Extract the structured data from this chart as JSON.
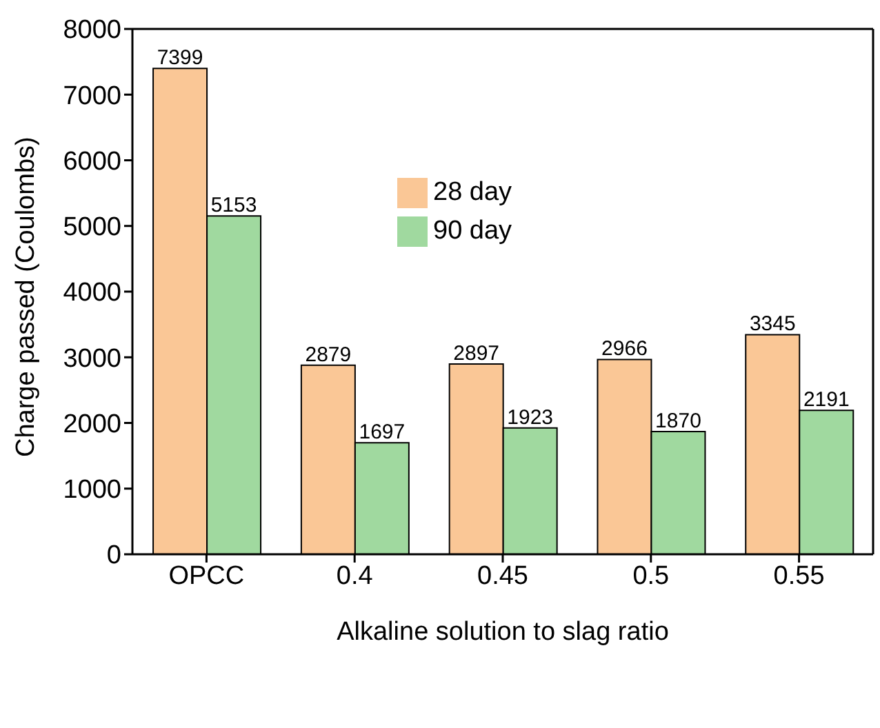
{
  "chart_data": {
    "type": "bar",
    "xlabel": "Alkaline solution to slag ratio",
    "ylabel": "Charge passed (Coulombs)",
    "categories": [
      "OPCC",
      "0.4",
      "0.45",
      "0.5",
      "0.55"
    ],
    "series": [
      {
        "name": "28 day",
        "color": "#fac796",
        "values": [
          7399,
          2879,
          2897,
          2966,
          3345
        ]
      },
      {
        "name": "90 day",
        "color": "#a0d99f",
        "values": [
          5153,
          1697,
          1923,
          1870,
          2191
        ]
      }
    ],
    "ylim": [
      0,
      8000
    ],
    "yticks": [
      0,
      1000,
      2000,
      3000,
      4000,
      5000,
      6000,
      7000,
      8000
    ],
    "grid": false,
    "legend": "top",
    "data_labels": true
  }
}
